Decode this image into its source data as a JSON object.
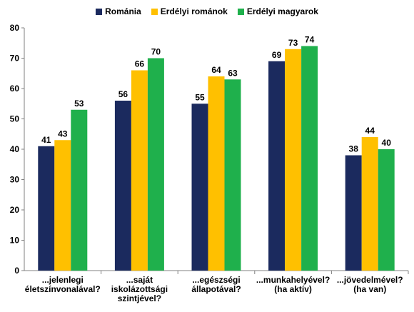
{
  "chart_data": {
    "type": "bar",
    "categories": [
      [
        "...jelenlegi",
        "életszínvonalával?"
      ],
      [
        "...saját",
        "iskolázottsági",
        "szintjével?"
      ],
      [
        "...egészségi",
        "állapotával?"
      ],
      [
        "...munkahelyével?",
        "(ha aktív)"
      ],
      [
        "...jövedelmével?",
        "(ha van)"
      ]
    ],
    "series": [
      {
        "name": "Románia",
        "color": "#1b2a5e",
        "values": [
          41,
          56,
          55,
          69,
          38
        ]
      },
      {
        "name": "Erdélyi románok",
        "color": "#ffc000",
        "values": [
          43,
          66,
          64,
          73,
          44
        ]
      },
      {
        "name": "Erdélyi magyarok",
        "color": "#1fb04c",
        "values": [
          53,
          70,
          63,
          74,
          40
        ]
      }
    ],
    "ylim": [
      0,
      80
    ],
    "yticks": [
      0,
      10,
      20,
      30,
      40,
      50,
      60,
      70,
      80
    ],
    "legend_position": "top-center",
    "grid": false
  }
}
